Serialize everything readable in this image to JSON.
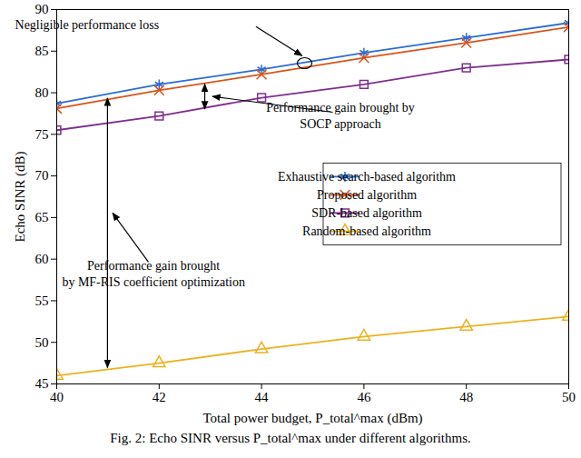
{
  "chart_data": {
    "type": "line",
    "caption": "Fig. 2: Echo SINR versus P_total^max under different algorithms.",
    "x_label": "Total power budget, P_total^max (dBm)",
    "y_label": "Echo SINR (dB)",
    "x": [
      40,
      42,
      44,
      46,
      48,
      50
    ],
    "xlim": [
      40,
      50
    ],
    "xticks": [
      40,
      42,
      44,
      46,
      48,
      50
    ],
    "ylim": [
      45,
      90
    ],
    "yticks": [
      45,
      50,
      55,
      60,
      65,
      70,
      75,
      80,
      85,
      90
    ],
    "grid": false,
    "legend": "right",
    "series": [
      {
        "name": "Exhaustive search-based algorithm",
        "color": "#2a6cd6",
        "marker": "asterisk",
        "line_style": "solid",
        "values": [
          78.7,
          81.0,
          82.8,
          84.8,
          86.6,
          88.4
        ]
      },
      {
        "name": "Proposed algorithm",
        "color": "#d9541a",
        "marker": "times",
        "line_style": "solid",
        "values": [
          78.1,
          80.3,
          82.2,
          84.2,
          86.0,
          87.9
        ]
      },
      {
        "name": "SDR-based algorithm",
        "color": "#7e2f8e",
        "marker": "square",
        "line_style": "solid",
        "values": [
          75.5,
          77.2,
          79.4,
          81.0,
          83.0,
          84.0
        ]
      },
      {
        "name": "Random-based algorithm",
        "color": "#edb120",
        "marker": "triangle",
        "line_style": "solid",
        "values": [
          46.0,
          47.5,
          49.2,
          50.7,
          51.9,
          53.1
        ]
      }
    ],
    "annotations": [
      "Negligible performance loss",
      "Performance gain brought by SOCP approach",
      "Performance gain brought by MF-RIS coefficient optimization"
    ]
  }
}
